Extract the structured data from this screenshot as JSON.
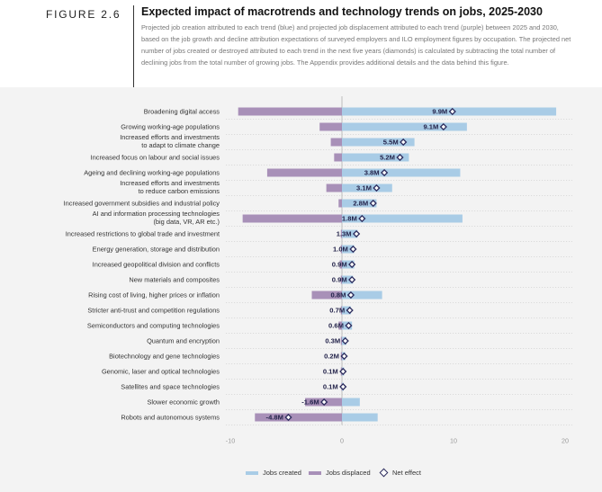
{
  "figure_label": "FIGURE 2.6",
  "title": "Expected impact of macrotrends and technology trends on jobs, 2025-2030",
  "subtitle": "Projected job creation attributed to each trend (blue) and projected job displacement attributed to each trend (purple) between 2025 and 2030, based on the job growth and decline attribution expectations of surveyed employers and ILO employment figures by occupation. The projected net number of jobs created or destroyed attributed to each trend in the next five years (diamonds) is calculated by subtracting the total number of declining jobs from the total number of growing jobs. The Appendix provides additional details and the data behind this figure.",
  "colors": {
    "created": "#a9cce6",
    "displaced": "#a890b8",
    "net": "#2b2b5c",
    "background": "#f3f3f3"
  },
  "chart_data": {
    "type": "bar",
    "orientation": "horizontal",
    "unit": "M",
    "xlim": [
      -10,
      20
    ],
    "xticks": [
      "-10",
      "0",
      "10",
      "20"
    ],
    "grid": "dotted row separators",
    "legend_position": "bottom",
    "series_names": {
      "created": "Jobs created",
      "displaced": "Jobs displaced",
      "net": "Net effect"
    },
    "rows": [
      {
        "label": [
          "Broadening digital access"
        ],
        "created": 19.2,
        "displaced": -9.3,
        "net": 9.9,
        "net_label": "9.9M"
      },
      {
        "label": [
          "Growing working-age populations"
        ],
        "created": 11.2,
        "displaced": -2.0,
        "net": 9.1,
        "net_label": "9.1M"
      },
      {
        "label": [
          "Increased efforts and investments",
          "to adapt to climate change"
        ],
        "created": 6.5,
        "displaced": -1.0,
        "net": 5.5,
        "net_label": "5.5M"
      },
      {
        "label": [
          "Increased focus on labour and social issues"
        ],
        "created": 6.0,
        "displaced": -0.7,
        "net": 5.2,
        "net_label": "5.2M"
      },
      {
        "label": [
          "Ageing and declining working-age populations"
        ],
        "created": 10.6,
        "displaced": -6.7,
        "net": 3.8,
        "net_label": "3.8M"
      },
      {
        "label": [
          "Increased efforts and investments",
          "to reduce carbon emissions"
        ],
        "created": 4.5,
        "displaced": -1.4,
        "net": 3.1,
        "net_label": "3.1M"
      },
      {
        "label": [
          "Increased government subsidies and industrial policy"
        ],
        "created": 3.1,
        "displaced": -0.3,
        "net": 2.8,
        "net_label": "2.8M"
      },
      {
        "label": [
          "AI and information processing technologies",
          "(big data, VR, AR etc.)"
        ],
        "created": 10.8,
        "displaced": -8.9,
        "net": 1.8,
        "net_label": "1.8M"
      },
      {
        "label": [
          "Increased restrictions to global trade and investment"
        ],
        "created": 1.4,
        "displaced": -0.1,
        "net": 1.3,
        "net_label": "1.3M"
      },
      {
        "label": [
          "Energy generation, storage and distribution"
        ],
        "created": 1.1,
        "displaced": -0.1,
        "net": 1.0,
        "net_label": "1.0M"
      },
      {
        "label": [
          "Increased geopolitical division and conflicts"
        ],
        "created": 1.1,
        "displaced": -0.2,
        "net": 0.9,
        "net_label": "0.9M"
      },
      {
        "label": [
          "New materials and composites"
        ],
        "created": 1.0,
        "displaced": -0.1,
        "net": 0.9,
        "net_label": "0.9M"
      },
      {
        "label": [
          "Rising cost of living, higher prices or inflation"
        ],
        "created": 3.6,
        "displaced": -2.7,
        "net": 0.8,
        "net_label": "0.8M"
      },
      {
        "label": [
          "Stricter anti-trust and competition regulations"
        ],
        "created": 0.8,
        "displaced": -0.1,
        "net": 0.7,
        "net_label": "0.7M"
      },
      {
        "label": [
          "Semiconductors and computing technologies"
        ],
        "created": 0.9,
        "displaced": -0.3,
        "net": 0.6,
        "net_label": "0.6M"
      },
      {
        "label": [
          "Quantum and encryption"
        ],
        "created": 0.4,
        "displaced": -0.1,
        "net": 0.3,
        "net_label": "0.3M"
      },
      {
        "label": [
          "Biotechnology and gene technologies"
        ],
        "created": 0.3,
        "displaced": -0.1,
        "net": 0.2,
        "net_label": "0.2M"
      },
      {
        "label": [
          "Genomic, laser and optical technologies"
        ],
        "created": 0.2,
        "displaced": -0.1,
        "net": 0.1,
        "net_label": "0.1M"
      },
      {
        "label": [
          "Satellites and space technologies"
        ],
        "created": 0.15,
        "displaced": -0.05,
        "net": 0.1,
        "net_label": "0.1M"
      },
      {
        "label": [
          "Slower economic growth"
        ],
        "created": 1.6,
        "displaced": -3.3,
        "net": -1.6,
        "net_label": "-1.6M"
      },
      {
        "label": [
          "Robots and autonomous systems"
        ],
        "created": 3.2,
        "displaced": -7.8,
        "net": -4.8,
        "net_label": "-4.8M"
      }
    ]
  }
}
